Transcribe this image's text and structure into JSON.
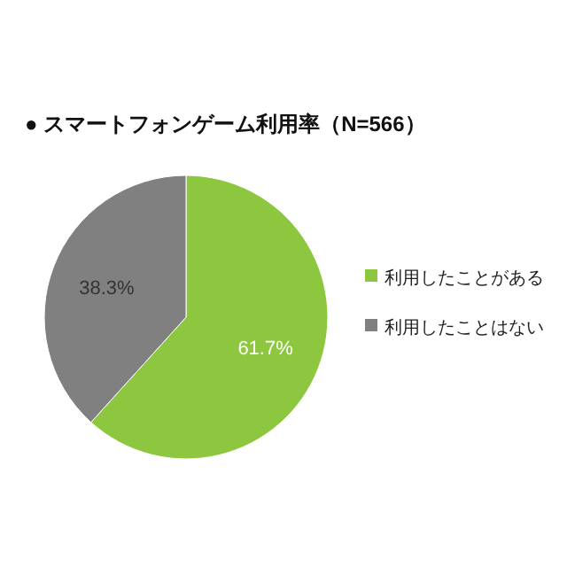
{
  "chart_data": {
    "type": "pie",
    "title": "● スマートフォンゲーム利用率（N=566）",
    "categories": [
      "利用したことがある",
      "利用したことはない"
    ],
    "values": [
      61.7,
      38.3
    ],
    "colors": [
      "#8dc63f",
      "#808080"
    ],
    "value_labels": [
      "61.7%",
      "38.3%"
    ],
    "legend": "right"
  }
}
